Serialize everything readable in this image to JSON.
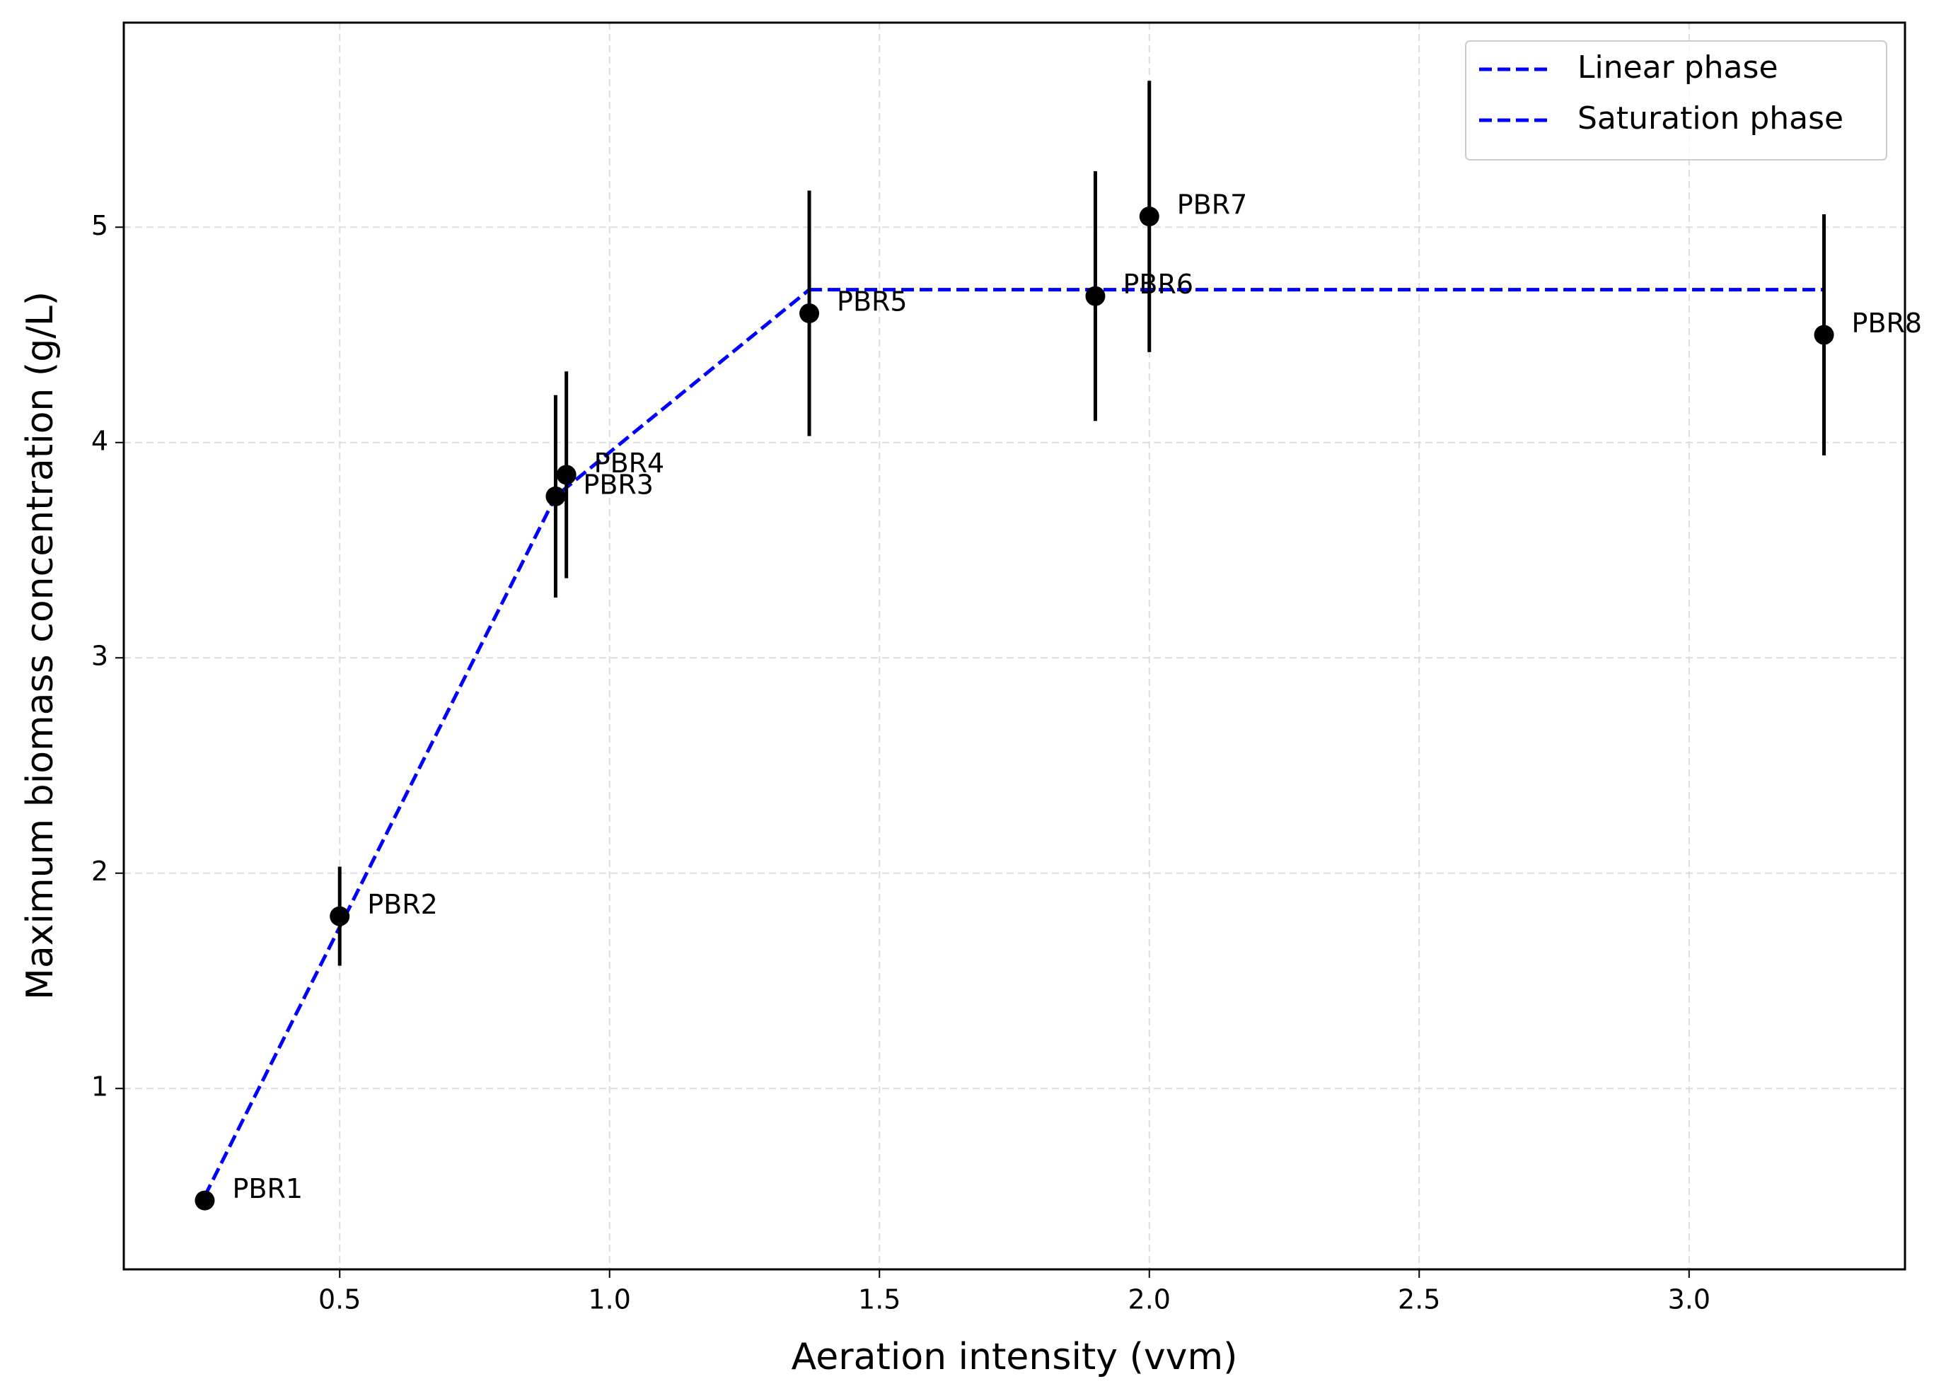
{
  "chart_data": {
    "type": "scatter",
    "xlabel": "Aeration intensity (vvm)",
    "ylabel": "Maximum biomass concentration (g/L)",
    "xlim": [
      0.1,
      3.4
    ],
    "ylim": [
      0.16,
      5.95
    ],
    "xticks": [
      0.5,
      {
        "value": 1.0,
        "label": "1.0"
      },
      1.5,
      {
        "value": 2.0,
        "label": "2.0"
      },
      2.5,
      {
        "value": 3.0,
        "label": "3.0"
      }
    ],
    "yticks": [
      1,
      2,
      3,
      4,
      5
    ],
    "grid": true,
    "legend": "upper right",
    "series": [
      {
        "name": "Linear phase",
        "color": "#0000ff",
        "x": [
          0.25,
          0.9,
          1.37
        ],
        "values": [
          0.5,
          3.75,
          4.71
        ]
      },
      {
        "name": "Saturation phase",
        "color": "#0000ff",
        "x": [
          1.37,
          3.25
        ],
        "values": [
          4.71,
          4.71
        ]
      }
    ],
    "points": {
      "color": "#000000",
      "labels": [
        "PBR1",
        "PBR2",
        "PBR3",
        "PBR4",
        "PBR5",
        "PBR6",
        "PBR7",
        "PBR8"
      ],
      "x": [
        0.25,
        0.5,
        0.9,
        0.92,
        1.37,
        1.9,
        2.0,
        3.25
      ],
      "values": [
        0.48,
        1.8,
        3.75,
        3.85,
        4.6,
        4.68,
        5.05,
        4.5
      ],
      "errors": [
        0.02,
        0.23,
        0.47,
        0.48,
        0.57,
        0.58,
        0.63,
        0.56
      ]
    }
  }
}
